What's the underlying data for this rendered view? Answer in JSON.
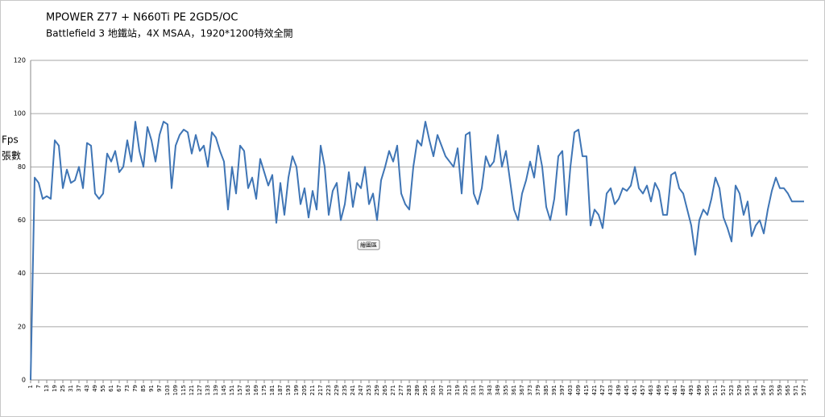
{
  "chart_data": {
    "type": "line",
    "title": "MPOWER Z77 + N660Ti PE 2GD5/OC",
    "subtitle": "Battlefield 3 地鐵站，4X MSAA，1920*1200特效全開",
    "ylabel_lines": [
      "Fps",
      "張數"
    ],
    "tooltip": "繪圖區",
    "color": "#3f75b5",
    "grid": true,
    "xlim": [
      1,
      580
    ],
    "ylim": [
      0,
      120
    ],
    "yticks": [
      0,
      20,
      40,
      60,
      80,
      100,
      120
    ],
    "xticks": [
      1,
      7,
      13,
      19,
      25,
      31,
      37,
      43,
      49,
      55,
      61,
      67,
      73,
      79,
      85,
      91,
      97,
      103,
      109,
      115,
      121,
      127,
      133,
      139,
      145,
      151,
      157,
      163,
      169,
      175,
      181,
      187,
      193,
      199,
      205,
      211,
      217,
      223,
      229,
      235,
      241,
      247,
      253,
      259,
      265,
      271,
      277,
      283,
      289,
      295,
      301,
      307,
      313,
      319,
      325,
      331,
      337,
      343,
      349,
      355,
      361,
      367,
      373,
      379,
      385,
      391,
      397,
      403,
      409,
      415,
      421,
      427,
      433,
      439,
      445,
      451,
      457,
      463,
      469,
      475,
      481,
      487,
      493,
      499,
      505,
      511,
      517,
      523,
      529,
      535,
      541,
      547,
      553,
      559,
      565,
      571,
      577
    ],
    "x": [
      1,
      4,
      7,
      10,
      13,
      16,
      19,
      22,
      25,
      28,
      31,
      34,
      37,
      40,
      43,
      46,
      49,
      52,
      55,
      58,
      61,
      64,
      67,
      70,
      73,
      76,
      79,
      82,
      85,
      88,
      91,
      94,
      97,
      100,
      103,
      106,
      109,
      112,
      115,
      118,
      121,
      124,
      127,
      130,
      133,
      136,
      139,
      142,
      145,
      148,
      151,
      154,
      157,
      160,
      163,
      166,
      169,
      172,
      175,
      178,
      181,
      184,
      187,
      190,
      193,
      196,
      199,
      202,
      205,
      208,
      211,
      214,
      217,
      220,
      223,
      226,
      229,
      232,
      235,
      238,
      241,
      244,
      247,
      250,
      253,
      256,
      259,
      262,
      265,
      268,
      271,
      274,
      277,
      280,
      283,
      286,
      289,
      292,
      295,
      298,
      301,
      304,
      307,
      310,
      313,
      316,
      319,
      322,
      325,
      328,
      331,
      334,
      337,
      340,
      343,
      346,
      349,
      352,
      355,
      358,
      361,
      364,
      367,
      370,
      373,
      376,
      379,
      382,
      385,
      388,
      391,
      394,
      397,
      400,
      403,
      406,
      409,
      412,
      415,
      418,
      421,
      424,
      427,
      430,
      433,
      436,
      439,
      442,
      445,
      448,
      451,
      454,
      457,
      460,
      463,
      466,
      469,
      472,
      475,
      478,
      481,
      484,
      487,
      490,
      493,
      496,
      499,
      502,
      505,
      508,
      511,
      514,
      517,
      520,
      523,
      526,
      529,
      532,
      535,
      538,
      541,
      544,
      547,
      550,
      553,
      556,
      559,
      562,
      565,
      568,
      571,
      574,
      577
    ],
    "values": [
      0,
      76,
      74,
      68,
      69,
      68,
      90,
      88,
      72,
      79,
      74,
      75,
      80,
      72,
      89,
      88,
      70,
      68,
      70,
      85,
      82,
      86,
      78,
      80,
      90,
      82,
      97,
      86,
      80,
      95,
      90,
      82,
      92,
      97,
      96,
      72,
      88,
      92,
      94,
      93,
      85,
      92,
      86,
      88,
      80,
      93,
      91,
      86,
      82,
      64,
      80,
      70,
      88,
      86,
      72,
      76,
      68,
      83,
      78,
      73,
      77,
      59,
      74,
      62,
      76,
      84,
      80,
      66,
      72,
      61,
      71,
      64,
      88,
      80,
      62,
      71,
      74,
      60,
      66,
      78,
      65,
      74,
      72,
      80,
      66,
      70,
      60,
      75,
      80,
      86,
      82,
      88,
      70,
      66,
      64,
      80,
      90,
      88,
      97,
      90,
      84,
      92,
      88,
      84,
      82,
      80,
      87,
      70,
      92,
      93,
      70,
      66,
      72,
      84,
      80,
      82,
      92,
      80,
      86,
      75,
      64,
      60,
      70,
      75,
      82,
      76,
      88,
      80,
      65,
      60,
      68,
      84,
      86,
      62,
      80,
      93,
      94,
      84,
      84,
      58,
      64,
      62,
      57,
      70,
      72,
      66,
      68,
      72,
      71,
      73,
      80,
      72,
      70,
      73,
      67,
      74,
      71,
      62,
      62,
      77,
      78,
      72,
      70,
      64,
      58,
      47,
      60,
      64,
      62,
      68,
      76,
      72,
      61,
      57,
      52,
      73,
      70,
      62,
      67,
      54,
      58,
      60,
      55,
      64,
      71,
      76,
      72,
      72,
      70,
      67,
      67,
      67,
      67
    ]
  }
}
